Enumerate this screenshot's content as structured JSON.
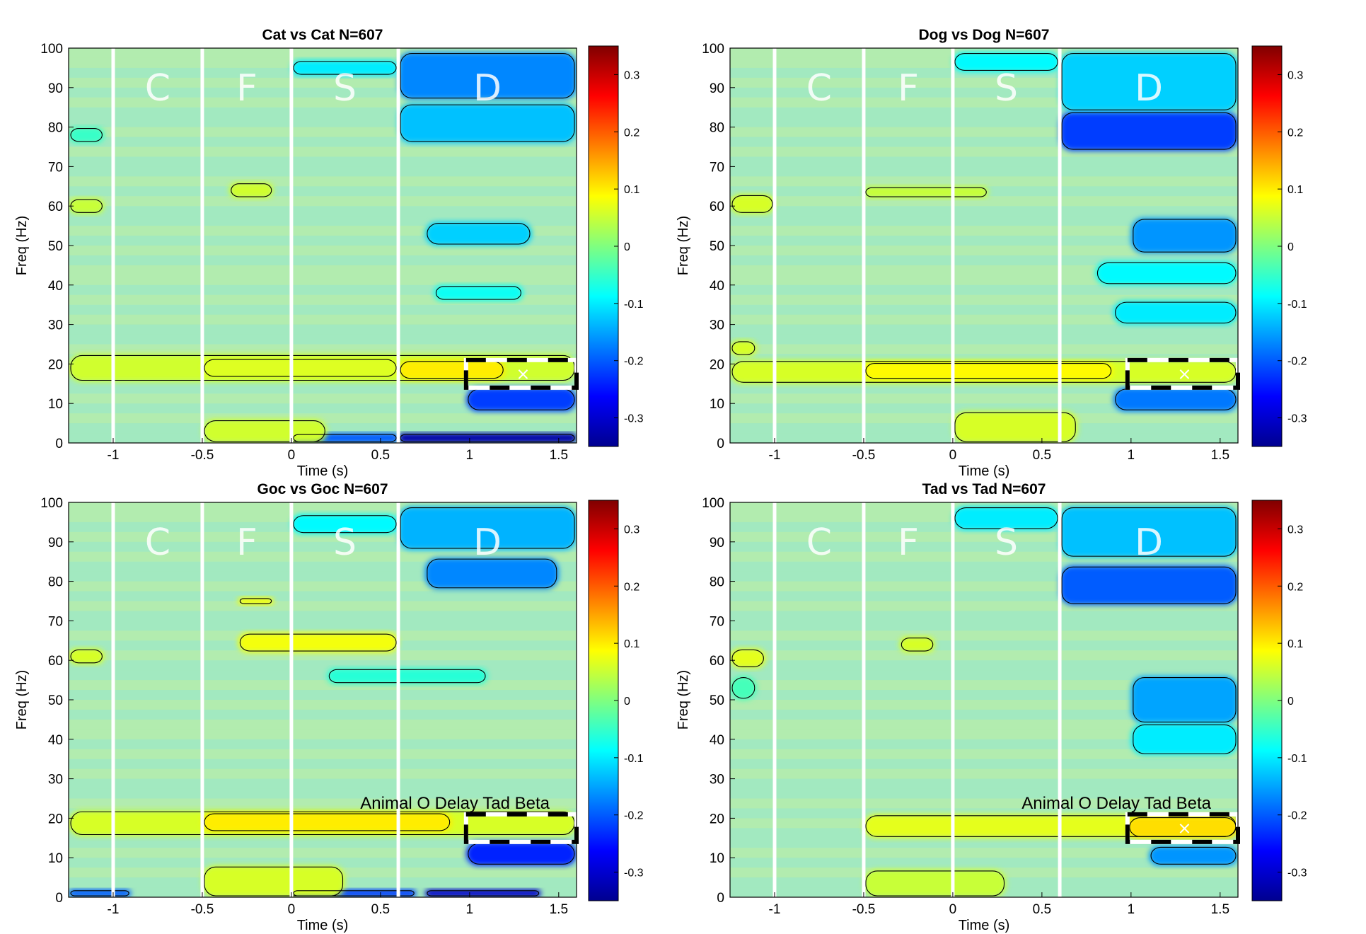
{
  "figure": {
    "colormap": "jet",
    "contour_color": "#000000",
    "divider_color": "#ffffff",
    "marker_color": "#ffffff",
    "background_color": "#a9ecb8"
  },
  "chart_data": [
    {
      "type": "heatmap",
      "title": "Cat vs Cat N=607",
      "xlabel": "Time (s)",
      "ylabel": "Freq (Hz)",
      "xlim": [
        -1.25,
        1.6
      ],
      "ylim": [
        0,
        100
      ],
      "xticks": [
        -1,
        -0.5,
        0,
        0.5,
        1,
        1.5
      ],
      "xtick_labels": [
        "-1",
        "-0.5",
        "0",
        "0.5",
        "1",
        "1.5"
      ],
      "yticks": [
        0,
        10,
        20,
        30,
        40,
        50,
        60,
        70,
        80,
        90,
        100
      ],
      "ytick_labels": [
        "0",
        "10",
        "20",
        "30",
        "40",
        "50",
        "60",
        "70",
        "80",
        "90",
        "100"
      ],
      "clim": [
        -0.35,
        0.35
      ],
      "colorbar_ticks": [
        -0.3,
        -0.2,
        -0.1,
        0,
        0.1,
        0.2,
        0.3
      ],
      "colorbar_labels": [
        "-0.3",
        "-0.2",
        "-0.1",
        "0",
        "0.1",
        "0.2",
        "0.3"
      ],
      "phase_boundaries": [
        -1,
        -0.5,
        0,
        0.6
      ],
      "phase_labels": [
        {
          "label": "C",
          "t": -0.75,
          "f": 90
        },
        {
          "label": "F",
          "t": -0.25,
          "f": 90
        },
        {
          "label": "S",
          "t": 0.3,
          "f": 90
        },
        {
          "label": "D",
          "t": 1.1,
          "f": 90
        }
      ],
      "roi": {
        "t": [
          0.98,
          1.6
        ],
        "f": [
          14,
          21
        ]
      },
      "peak_marker": {
        "t": 1.3,
        "f": 17.5,
        "label": "×"
      },
      "annotation": "",
      "regions": [
        {
          "t": [
            -1.25,
            1.6
          ],
          "f": [
            15.5,
            22.5
          ],
          "v": 0.055
        },
        {
          "t": [
            0.6,
            1.2
          ],
          "f": [
            16,
            21
          ],
          "v": 0.1
        },
        {
          "t": [
            -0.5,
            0.6
          ],
          "f": [
            16.5,
            21.5
          ],
          "v": 0.065
        },
        {
          "t": [
            0.6,
            1.6
          ],
          "f": [
            87,
            99
          ],
          "v": -0.17
        },
        {
          "t": [
            0.6,
            1.6
          ],
          "f": [
            76,
            86
          ],
          "v": -0.13
        },
        {
          "t": [
            0.0,
            0.6
          ],
          "f": [
            93,
            97
          ],
          "v": -0.1
        },
        {
          "t": [
            0.98,
            1.6
          ],
          "f": [
            8,
            14
          ],
          "v": -0.22
        },
        {
          "t": [
            0.6,
            1.6
          ],
          "f": [
            0,
            2.5
          ],
          "v": -0.32
        },
        {
          "t": [
            0.0,
            0.6
          ],
          "f": [
            0,
            2.5
          ],
          "v": -0.2
        },
        {
          "t": [
            0.75,
            1.35
          ],
          "f": [
            50,
            56
          ],
          "v": -0.12
        },
        {
          "t": [
            0.8,
            1.3
          ],
          "f": [
            36,
            40
          ],
          "v": -0.08
        },
        {
          "t": [
            -0.5,
            0.2
          ],
          "f": [
            0,
            6
          ],
          "v": 0.055
        },
        {
          "t": [
            -0.35,
            -0.1
          ],
          "f": [
            62,
            66
          ],
          "v": 0.055
        },
        {
          "t": [
            -1.25,
            -1.05
          ],
          "f": [
            58,
            62
          ],
          "v": 0.05
        },
        {
          "t": [
            -1.25,
            -1.05
          ],
          "f": [
            76,
            80
          ],
          "v": -0.05
        }
      ]
    },
    {
      "type": "heatmap",
      "title": "Dog vs Dog N=607",
      "xlabel": "Time (s)",
      "ylabel": "Freq (Hz)",
      "xlim": [
        -1.25,
        1.6
      ],
      "ylim": [
        0,
        100
      ],
      "xticks": [
        -1,
        -0.5,
        0,
        0.5,
        1,
        1.5
      ],
      "xtick_labels": [
        "-1",
        "-0.5",
        "0",
        "0.5",
        "1",
        "1.5"
      ],
      "yticks": [
        0,
        10,
        20,
        30,
        40,
        50,
        60,
        70,
        80,
        90,
        100
      ],
      "ytick_labels": [
        "0",
        "10",
        "20",
        "30",
        "40",
        "50",
        "60",
        "70",
        "80",
        "90",
        "100"
      ],
      "clim": [
        -0.35,
        0.35
      ],
      "colorbar_ticks": [
        -0.3,
        -0.2,
        -0.1,
        0,
        0.1,
        0.2,
        0.3
      ],
      "colorbar_labels": [
        "-0.3",
        "-0.2",
        "-0.1",
        "0",
        "0.1",
        "0.2",
        "0.3"
      ],
      "phase_boundaries": [
        -1,
        -0.5,
        0,
        0.6
      ],
      "phase_labels": [
        {
          "label": "C",
          "t": -0.75,
          "f": 90
        },
        {
          "label": "F",
          "t": -0.25,
          "f": 90
        },
        {
          "label": "S",
          "t": 0.3,
          "f": 90
        },
        {
          "label": "D",
          "t": 1.1,
          "f": 90
        }
      ],
      "roi": {
        "t": [
          0.98,
          1.6
        ],
        "f": [
          14,
          21
        ]
      },
      "peak_marker": {
        "t": 1.3,
        "f": 17.5,
        "label": "×"
      },
      "annotation": "",
      "regions": [
        {
          "t": [
            -1.25,
            1.6
          ],
          "f": [
            15,
            21
          ],
          "v": 0.06
        },
        {
          "t": [
            -0.5,
            0.9
          ],
          "f": [
            16,
            20.5
          ],
          "v": 0.09
        },
        {
          "t": [
            0.6,
            1.6
          ],
          "f": [
            74,
            84
          ],
          "v": -0.22
        },
        {
          "t": [
            0.6,
            1.6
          ],
          "f": [
            84,
            99
          ],
          "v": -0.12
        },
        {
          "t": [
            1.0,
            1.6
          ],
          "f": [
            48,
            57
          ],
          "v": -0.16
        },
        {
          "t": [
            0.8,
            1.6
          ],
          "f": [
            40,
            46
          ],
          "v": -0.09
        },
        {
          "t": [
            0.9,
            1.6
          ],
          "f": [
            30,
            36
          ],
          "v": -0.1
        },
        {
          "t": [
            0.9,
            1.6
          ],
          "f": [
            8,
            14
          ],
          "v": -0.18
        },
        {
          "t": [
            0.0,
            0.7
          ],
          "f": [
            0,
            8
          ],
          "v": 0.06
        },
        {
          "t": [
            -0.5,
            0.2
          ],
          "f": [
            62,
            65
          ],
          "v": 0.05
        },
        {
          "t": [
            -1.25,
            -1.0
          ],
          "f": [
            58,
            63
          ],
          "v": 0.06
        },
        {
          "t": [
            -1.25,
            -1.1
          ],
          "f": [
            22,
            26
          ],
          "v": 0.06
        },
        {
          "t": [
            0.0,
            0.6
          ],
          "f": [
            94,
            99
          ],
          "v": -0.09
        }
      ]
    },
    {
      "type": "heatmap",
      "title": "Goc vs Goc N=607",
      "xlabel": "Time (s)",
      "ylabel": "Freq (Hz)",
      "xlim": [
        -1.25,
        1.6
      ],
      "ylim": [
        0,
        100
      ],
      "xticks": [
        -1,
        -0.5,
        0,
        0.5,
        1,
        1.5
      ],
      "xtick_labels": [
        "-1",
        "-0.5",
        "0",
        "0.5",
        "1",
        "1.5"
      ],
      "yticks": [
        0,
        10,
        20,
        30,
        40,
        50,
        60,
        70,
        80,
        90,
        100
      ],
      "ytick_labels": [
        "0",
        "10",
        "20",
        "30",
        "40",
        "50",
        "60",
        "70",
        "80",
        "90",
        "100"
      ],
      "clim": [
        -0.35,
        0.35
      ],
      "colorbar_ticks": [
        -0.3,
        -0.2,
        -0.1,
        0,
        0.1,
        0.2,
        0.3
      ],
      "colorbar_labels": [
        "-0.3",
        "-0.2",
        "-0.1",
        "0",
        "0.1",
        "0.2",
        "0.3"
      ],
      "phase_boundaries": [
        -1,
        -0.5,
        0,
        0.6
      ],
      "phase_labels": [
        {
          "label": "C",
          "t": -0.75,
          "f": 90
        },
        {
          "label": "F",
          "t": -0.25,
          "f": 90
        },
        {
          "label": "S",
          "t": 0.3,
          "f": 90
        },
        {
          "label": "D",
          "t": 1.1,
          "f": 90
        }
      ],
      "roi": {
        "t": [
          0.98,
          1.6
        ],
        "f": [
          14,
          21
        ]
      },
      "peak_marker": {
        "t": 1.3,
        "f": 17.5,
        "label": ""
      },
      "annotation": "Animal O Delay Tad Beta",
      "regions": [
        {
          "t": [
            -1.25,
            1.6
          ],
          "f": [
            15.5,
            22
          ],
          "v": 0.06
        },
        {
          "t": [
            -0.5,
            0.9
          ],
          "f": [
            16.5,
            21.5
          ],
          "v": 0.1
        },
        {
          "t": [
            -0.3,
            0.6
          ],
          "f": [
            62,
            67
          ],
          "v": 0.08
        },
        {
          "t": [
            0.6,
            1.6
          ],
          "f": [
            88,
            99
          ],
          "v": -0.14
        },
        {
          "t": [
            0.75,
            1.5
          ],
          "f": [
            78,
            86
          ],
          "v": -0.17
        },
        {
          "t": [
            0.0,
            0.6
          ],
          "f": [
            92,
            97
          ],
          "v": -0.09
        },
        {
          "t": [
            0.98,
            1.6
          ],
          "f": [
            8,
            14
          ],
          "v": -0.24
        },
        {
          "t": [
            0.75,
            1.4
          ],
          "f": [
            0,
            2
          ],
          "v": -0.3
        },
        {
          "t": [
            0.0,
            0.7
          ],
          "f": [
            0,
            2
          ],
          "v": -0.22
        },
        {
          "t": [
            -1.25,
            -0.9
          ],
          "f": [
            0,
            2
          ],
          "v": -0.2
        },
        {
          "t": [
            -0.5,
            0.3
          ],
          "f": [
            0,
            8
          ],
          "v": 0.06
        },
        {
          "t": [
            -1.25,
            -1.05
          ],
          "f": [
            59,
            63
          ],
          "v": 0.06
        },
        {
          "t": [
            -0.3,
            -0.1
          ],
          "f": [
            74,
            76
          ],
          "v": 0.08
        },
        {
          "t": [
            0.2,
            1.1
          ],
          "f": [
            54,
            58
          ],
          "v": -0.06
        }
      ]
    },
    {
      "type": "heatmap",
      "title": "Tad vs Tad N=607",
      "xlabel": "Time (s)",
      "ylabel": "Freq (Hz)",
      "xlim": [
        -1.25,
        1.6
      ],
      "ylim": [
        0,
        100
      ],
      "xticks": [
        -1,
        -0.5,
        0,
        0.5,
        1,
        1.5
      ],
      "xtick_labels": [
        "-1",
        "-0.5",
        "0",
        "0.5",
        "1",
        "1.5"
      ],
      "yticks": [
        0,
        10,
        20,
        30,
        40,
        50,
        60,
        70,
        80,
        90,
        100
      ],
      "ytick_labels": [
        "0",
        "10",
        "20",
        "30",
        "40",
        "50",
        "60",
        "70",
        "80",
        "90",
        "100"
      ],
      "clim": [
        -0.35,
        0.35
      ],
      "colorbar_ticks": [
        -0.3,
        -0.2,
        -0.1,
        0,
        0.1,
        0.2,
        0.3
      ],
      "colorbar_labels": [
        "-0.3",
        "-0.2",
        "-0.1",
        "0",
        "0.1",
        "0.2",
        "0.3"
      ],
      "phase_boundaries": [
        -1,
        -0.5,
        0,
        0.6
      ],
      "phase_labels": [
        {
          "label": "C",
          "t": -0.75,
          "f": 90
        },
        {
          "label": "F",
          "t": -0.25,
          "f": 90
        },
        {
          "label": "S",
          "t": 0.3,
          "f": 90
        },
        {
          "label": "D",
          "t": 1.1,
          "f": 90
        }
      ],
      "roi": {
        "t": [
          0.98,
          1.6
        ],
        "f": [
          14,
          21
        ]
      },
      "peak_marker": {
        "t": 1.3,
        "f": 17.5,
        "label": "×"
      },
      "annotation": "Animal O Delay Tad Beta",
      "regions": [
        {
          "t": [
            -0.5,
            1.6
          ],
          "f": [
            15,
            21
          ],
          "v": 0.07
        },
        {
          "t": [
            0.98,
            1.6
          ],
          "f": [
            15,
            20.5
          ],
          "v": 0.11
        },
        {
          "t": [
            0.6,
            1.6
          ],
          "f": [
            74,
            84
          ],
          "v": -0.2
        },
        {
          "t": [
            0.6,
            1.6
          ],
          "f": [
            86,
            99
          ],
          "v": -0.13
        },
        {
          "t": [
            1.0,
            1.6
          ],
          "f": [
            44,
            56
          ],
          "v": -0.15
        },
        {
          "t": [
            1.0,
            1.6
          ],
          "f": [
            36,
            44
          ],
          "v": -0.1
        },
        {
          "t": [
            1.1,
            1.6
          ],
          "f": [
            8,
            13
          ],
          "v": -0.16
        },
        {
          "t": [
            0.0,
            0.6
          ],
          "f": [
            93,
            99
          ],
          "v": -0.1
        },
        {
          "t": [
            -0.5,
            0.3
          ],
          "f": [
            0,
            7
          ],
          "v": 0.05
        },
        {
          "t": [
            -1.25,
            -1.05
          ],
          "f": [
            58,
            63
          ],
          "v": 0.07
        },
        {
          "t": [
            -0.3,
            -0.1
          ],
          "f": [
            62,
            66
          ],
          "v": 0.06
        },
        {
          "t": [
            -1.25,
            -1.1
          ],
          "f": [
            50,
            56
          ],
          "v": -0.04
        }
      ]
    }
  ]
}
